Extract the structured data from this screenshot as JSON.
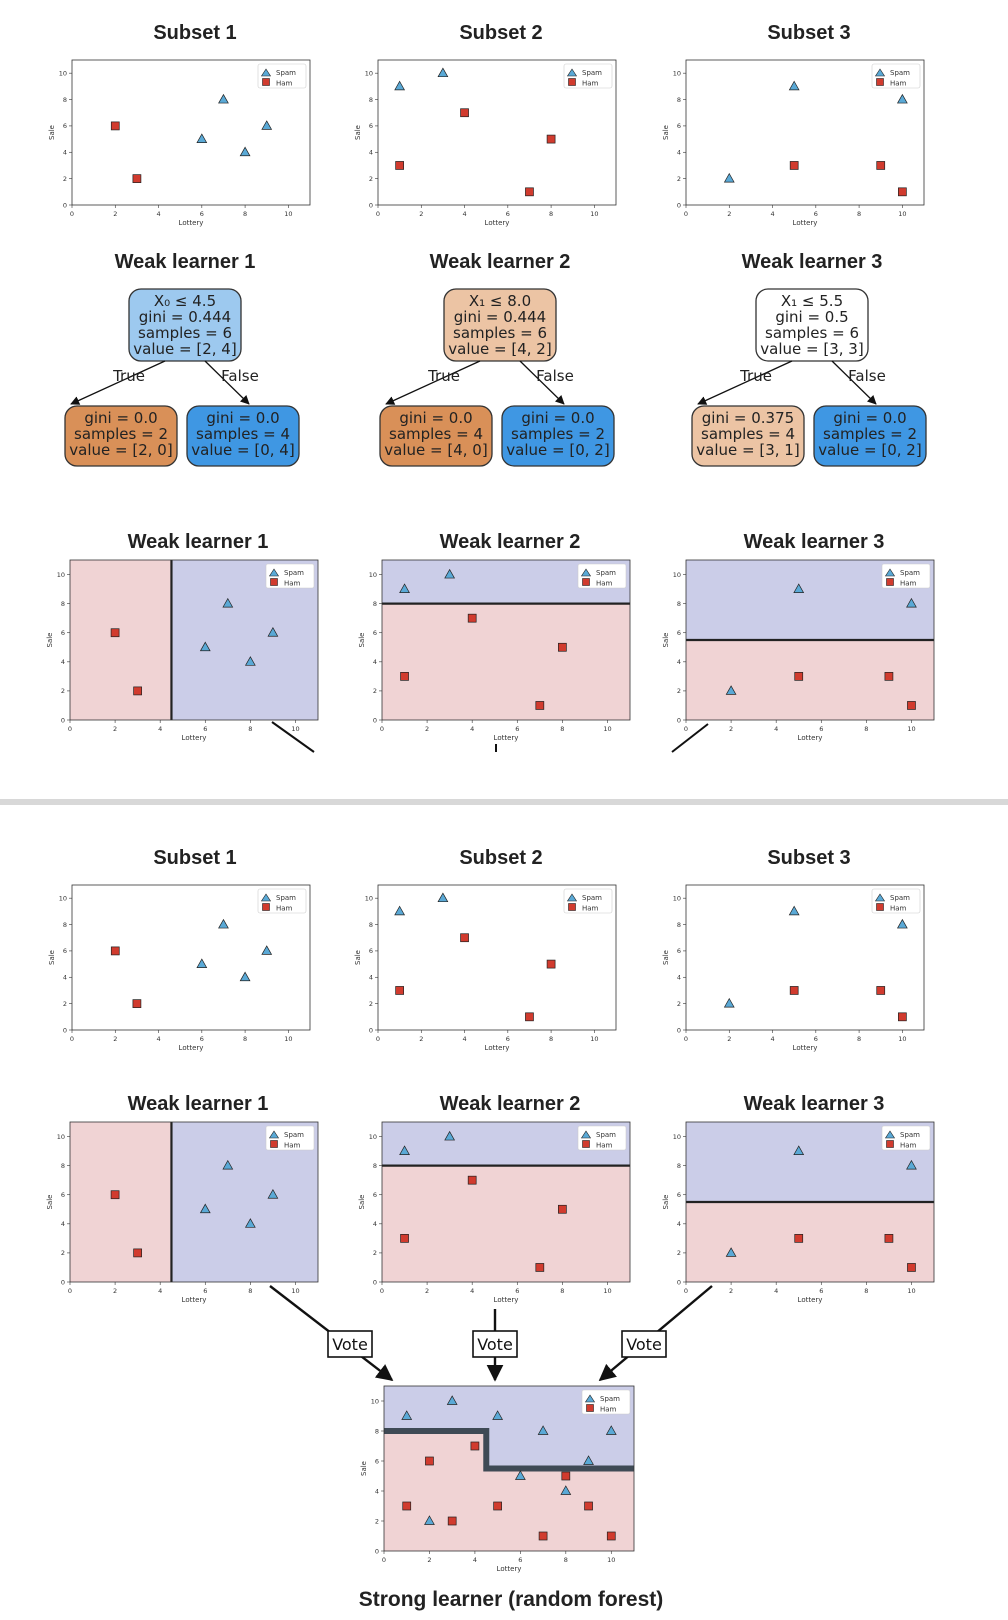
{
  "colors": {
    "spam_marker": "#5aa9d6",
    "ham_marker": "#d13b2e",
    "spam_region": "#cbcde8",
    "ham_region": "#f0d3d4",
    "boundary": "#222222",
    "forest_boundary": "#3f4a55",
    "divider": "#d8d8d8",
    "node_blue": "#3f97e3",
    "node_blue_light": "#9dc9ef",
    "node_orange": "#d99058",
    "node_orange_light": "#ecc4a4",
    "node_white": "#ffffff"
  },
  "labels": {
    "subset_titles": [
      "Subset 1",
      "Subset 2",
      "Subset 3"
    ],
    "learner_titles": [
      "Weak learner 1",
      "Weak learner 2",
      "Weak learner 3"
    ],
    "strong_title": "Strong learner (random forest)",
    "vote": "Vote",
    "legend_spam": "Spam",
    "legend_ham": "Ham",
    "xlabel": "Lottery",
    "ylabel": "Sale",
    "true_label": "True",
    "false_label": "False"
  },
  "trees": [
    {
      "root": {
        "line1": "X₀ ≤ 4.5",
        "line2": "gini = 0.444",
        "line3": "samples = 6",
        "line4": "value = [2, 4]",
        "fill": "blue_light"
      },
      "left": {
        "line1": "gini = 0.0",
        "line2": "samples = 2",
        "line3": "value = [2, 0]",
        "fill": "orange"
      },
      "right": {
        "line1": "gini = 0.0",
        "line2": "samples = 4",
        "line3": "value = [0, 4]",
        "fill": "blue"
      }
    },
    {
      "root": {
        "line1": "X₁ ≤ 8.0",
        "line2": "gini = 0.444",
        "line3": "samples = 6",
        "line4": "value = [4, 2]",
        "fill": "orange_light"
      },
      "left": {
        "line1": "gini = 0.0",
        "line2": "samples = 4",
        "line3": "value = [4, 0]",
        "fill": "orange"
      },
      "right": {
        "line1": "gini = 0.0",
        "line2": "samples = 2",
        "line3": "value = [0, 2]",
        "fill": "blue"
      }
    },
    {
      "root": {
        "line1": "X₁ ≤ 5.5",
        "line2": "gini = 0.5",
        "line3": "samples = 6",
        "line4": "value = [3, 3]",
        "fill": "white"
      },
      "left": {
        "line1": "gini = 0.375",
        "line2": "samples = 4",
        "line3": "value = [3, 1]",
        "fill": "orange_light"
      },
      "right": {
        "line1": "gini = 0.0",
        "line2": "samples = 2",
        "line3": "value = [0, 2]",
        "fill": "blue"
      }
    }
  ],
  "chart_data": [
    {
      "type": "scatter",
      "title": "Subset 1",
      "xlabel": "Lottery",
      "ylabel": "Sale",
      "xlim": [
        0,
        11
      ],
      "ylim": [
        0,
        11
      ],
      "xticks": [
        0,
        2,
        4,
        6,
        8,
        10
      ],
      "yticks": [
        0,
        2,
        4,
        6,
        8,
        10
      ],
      "series": [
        {
          "name": "Spam",
          "marker": "triangle",
          "points": [
            [
              6,
              5
            ],
            [
              7,
              8
            ],
            [
              8,
              4
            ],
            [
              9,
              6
            ]
          ]
        },
        {
          "name": "Ham",
          "marker": "square",
          "points": [
            [
              2,
              6
            ],
            [
              3,
              2
            ]
          ]
        }
      ]
    },
    {
      "type": "scatter",
      "title": "Subset 2",
      "xlabel": "Lottery",
      "ylabel": "Sale",
      "xlim": [
        0,
        11
      ],
      "ylim": [
        0,
        11
      ],
      "xticks": [
        0,
        2,
        4,
        6,
        8,
        10
      ],
      "yticks": [
        0,
        2,
        4,
        6,
        8,
        10
      ],
      "series": [
        {
          "name": "Spam",
          "marker": "triangle",
          "points": [
            [
              1,
              9
            ],
            [
              3,
              10
            ]
          ]
        },
        {
          "name": "Ham",
          "marker": "square",
          "points": [
            [
              1,
              3
            ],
            [
              4,
              7
            ],
            [
              7,
              1
            ],
            [
              8,
              5
            ]
          ]
        }
      ]
    },
    {
      "type": "scatter",
      "title": "Subset 3",
      "xlabel": "Lottery",
      "ylabel": "Sale",
      "xlim": [
        0,
        11
      ],
      "ylim": [
        0,
        11
      ],
      "xticks": [
        0,
        2,
        4,
        6,
        8,
        10
      ],
      "yticks": [
        0,
        2,
        4,
        6,
        8,
        10
      ],
      "series": [
        {
          "name": "Spam",
          "marker": "triangle",
          "points": [
            [
              2,
              2
            ],
            [
              5,
              9
            ],
            [
              10,
              8
            ]
          ]
        },
        {
          "name": "Ham",
          "marker": "square",
          "points": [
            [
              5,
              3
            ],
            [
              9,
              3
            ],
            [
              10,
              1
            ]
          ]
        }
      ]
    },
    {
      "type": "scatter",
      "title": "Weak learner 1",
      "split": {
        "axis": "x",
        "threshold": 4.5,
        "spam_side": "above"
      },
      "xlabel": "Lottery",
      "ylabel": "Sale",
      "xlim": [
        0,
        11
      ],
      "ylim": [
        0,
        11
      ]
    },
    {
      "type": "scatter",
      "title": "Weak learner 2",
      "split": {
        "axis": "y",
        "threshold": 8.0,
        "spam_side": "above"
      },
      "xlabel": "Lottery",
      "ylabel": "Sale",
      "xlim": [
        0,
        11
      ],
      "ylim": [
        0,
        11
      ]
    },
    {
      "type": "scatter",
      "title": "Weak learner 3",
      "split": {
        "axis": "y",
        "threshold": 5.5,
        "spam_side": "above"
      },
      "xlabel": "Lottery",
      "ylabel": "Sale",
      "xlim": [
        0,
        11
      ],
      "ylim": [
        0,
        11
      ]
    },
    {
      "type": "scatter",
      "title": "Strong learner (random forest)",
      "xlabel": "Lottery",
      "ylabel": "Sale",
      "xlim": [
        0,
        11
      ],
      "ylim": [
        0,
        11
      ],
      "boundary": [
        [
          0,
          8
        ],
        [
          4.5,
          8
        ],
        [
          4.5,
          5.5
        ],
        [
          11,
          5.5
        ]
      ],
      "series": [
        {
          "name": "Spam",
          "marker": "triangle",
          "points": [
            [
              1,
              9
            ],
            [
              3,
              10
            ],
            [
              5,
              9
            ],
            [
              7,
              8
            ],
            [
              10,
              8
            ],
            [
              6,
              5
            ],
            [
              8,
              4
            ],
            [
              9,
              6
            ],
            [
              2,
              2
            ]
          ]
        },
        {
          "name": "Ham",
          "marker": "square",
          "points": [
            [
              2,
              6
            ],
            [
              4,
              7
            ],
            [
              1,
              3
            ],
            [
              3,
              2
            ],
            [
              5,
              3
            ],
            [
              8,
              5
            ],
            [
              9,
              3
            ],
            [
              7,
              1
            ],
            [
              10,
              1
            ]
          ]
        }
      ]
    }
  ]
}
